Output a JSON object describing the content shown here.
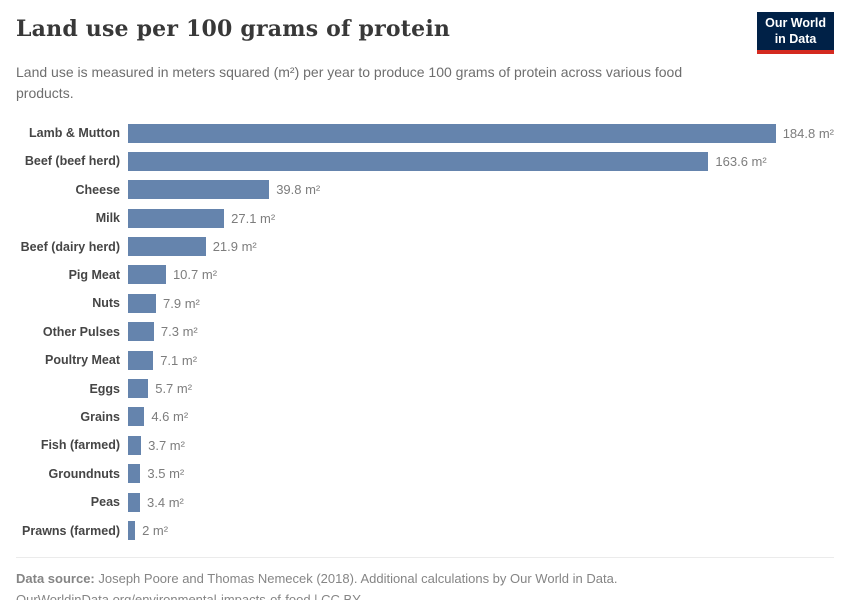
{
  "header": {
    "title": "Land use per 100 grams of protein",
    "subtitle": "Land use is measured in meters squared (m²) per year to produce 100 grams of protein across various food products."
  },
  "logo": {
    "line1": "Our World",
    "line2": "in Data",
    "bg_color": "#002147",
    "accent_color": "#d42a20"
  },
  "chart_data": {
    "type": "bar",
    "orientation": "horizontal",
    "title": "Land use per 100 grams of protein",
    "xlabel": "",
    "ylabel": "",
    "unit": "m²",
    "xlim": [
      0,
      199
    ],
    "grid": false,
    "legend": false,
    "bar_color": "#6584ad",
    "categories": [
      "Lamb & Mutton",
      "Beef (beef herd)",
      "Cheese",
      "Milk",
      "Beef (dairy herd)",
      "Pig Meat",
      "Nuts",
      "Other Pulses",
      "Poultry Meat",
      "Eggs",
      "Grains",
      "Fish (farmed)",
      "Groundnuts",
      "Peas",
      "Prawns (farmed)"
    ],
    "values": [
      184.8,
      163.6,
      39.8,
      27.1,
      21.9,
      10.7,
      7.9,
      7.3,
      7.1,
      5.7,
      4.6,
      3.7,
      3.5,
      3.4,
      2
    ]
  },
  "footer": {
    "source_label": "Data source:",
    "source_text": " Joseph Poore and Thomas Nemecek (2018). Additional calculations by Our World in Data.",
    "license_line": "OurWorldinData.org/environmental-impacts-of-food | CC BY"
  }
}
